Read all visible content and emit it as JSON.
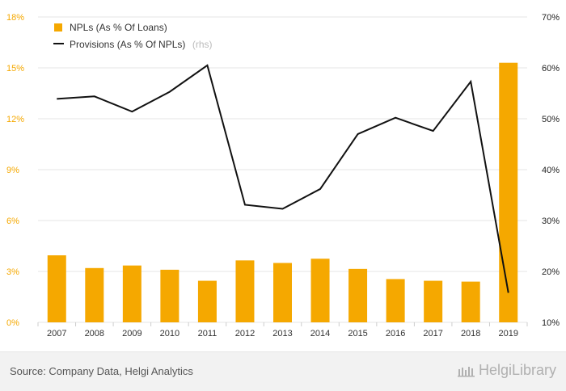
{
  "footer": {
    "source": "Source: Company Data, Helgi Analytics",
    "brand": "HelgiLibrary"
  },
  "colors": {
    "bar": "#f5a800",
    "line": "#111111",
    "grid": "#e5e5e5"
  },
  "chart_data": {
    "type": "bar",
    "categories": [
      "2007",
      "2008",
      "2009",
      "2010",
      "2011",
      "2012",
      "2013",
      "2014",
      "2015",
      "2016",
      "2017",
      "2018",
      "2019"
    ],
    "series": [
      {
        "name": "NPLs (As % Of Loans)",
        "type": "bar",
        "axis": "left",
        "values": [
          3.95,
          3.2,
          3.35,
          3.1,
          2.45,
          3.65,
          3.5,
          3.75,
          3.15,
          2.55,
          2.45,
          2.4,
          15.3
        ]
      },
      {
        "name": "Provisions (As % Of NPLs)",
        "name_suffix": "(rhs)",
        "type": "line",
        "axis": "right",
        "values": [
          53.9,
          54.4,
          51.4,
          55.3,
          60.5,
          33.1,
          32.3,
          36.2,
          47.0,
          50.2,
          47.6,
          57.3,
          15.8
        ]
      }
    ],
    "y_left": {
      "min": 0,
      "max": 18,
      "ticks": [
        "0%",
        "3%",
        "6%",
        "9%",
        "12%",
        "15%",
        "18%"
      ]
    },
    "y_right": {
      "min": 10,
      "max": 70,
      "ticks": [
        "10%",
        "20%",
        "30%",
        "40%",
        "50%",
        "60%",
        "70%"
      ]
    },
    "grid": true,
    "legend_position": "top-left"
  }
}
